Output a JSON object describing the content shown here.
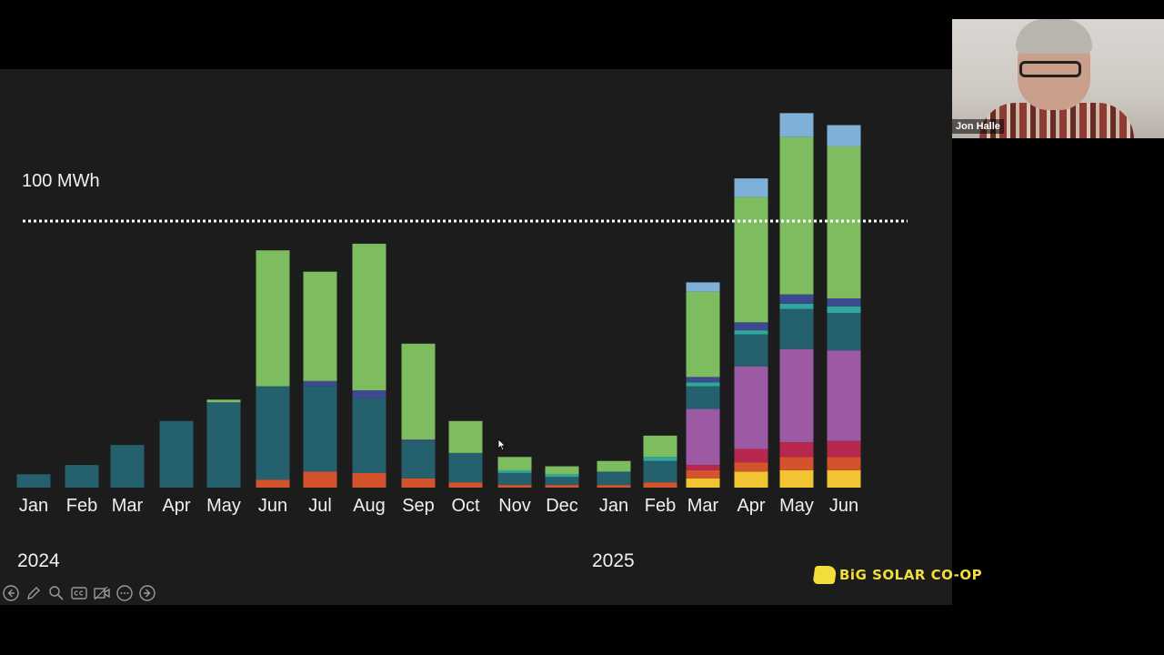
{
  "reference_label": "100 MWh",
  "year_labels": [
    "2024",
    "2025"
  ],
  "logo_text": "BiG SOLAR CO-OP",
  "participant_name": "Jon Halle",
  "toolbar_icons": [
    "prev-icon",
    "pen-icon",
    "zoom-icon",
    "captions-icon",
    "video-icon",
    "more-icon",
    "next-icon"
  ],
  "colors": {
    "background": "#1c1c1c",
    "teal": "#24606e",
    "green": "#7dbd5f",
    "navy": "#3d4a90",
    "light_blue": "#7fb1d8",
    "purple": "#9b5aa3",
    "aqua": "#2fa79a",
    "orange": "#d2532c",
    "yellow": "#f2c434",
    "crimson": "#b8274d",
    "logo_yellow": "#f2dd3a"
  },
  "chart_data": {
    "type": "bar",
    "stacked": true,
    "unit": "MWh",
    "reference_line": 100,
    "ylim": [
      0,
      140
    ],
    "categories": [
      "Jan",
      "Feb",
      "Mar",
      "Apr",
      "May",
      "Jun",
      "Jul",
      "Aug",
      "Sep",
      "Oct",
      "Nov",
      "Dec",
      "Jan",
      "Feb",
      "Mar",
      "Apr",
      "May",
      "Jun"
    ],
    "series": [
      {
        "color": "#f2c434",
        "values": [
          0,
          0,
          0,
          0,
          0,
          0,
          0,
          0,
          0,
          0,
          0,
          0,
          0,
          0,
          3.5,
          6,
          6.5,
          6.5
        ]
      },
      {
        "color": "#d2532c",
        "values": [
          0,
          0,
          0,
          0,
          0,
          3,
          6,
          5.5,
          3.5,
          2,
          1,
          1,
          1,
          2,
          3,
          3.5,
          5,
          5
        ]
      },
      {
        "color": "#b8274d",
        "values": [
          0,
          0,
          0,
          0,
          0,
          0,
          0,
          0,
          0,
          0,
          0,
          0,
          0,
          0,
          2,
          5,
          5.5,
          6
        ]
      },
      {
        "color": "#9b5aa3",
        "values": [
          0,
          0,
          0,
          0,
          0,
          0,
          0,
          0,
          0,
          0,
          0,
          0,
          0,
          0,
          21,
          31,
          35,
          34
        ]
      },
      {
        "color": "#24606e",
        "values": [
          5,
          8.5,
          16,
          25,
          32,
          35,
          32,
          28,
          14,
          11,
          4.5,
          3,
          5,
          8,
          8.5,
          12,
          15,
          14
        ]
      },
      {
        "color": "#2fa79a",
        "values": [
          0,
          0,
          0,
          0,
          0,
          0,
          0,
          0,
          0,
          0,
          1,
          1,
          0,
          1.5,
          1.5,
          1.5,
          2,
          2.5
        ]
      },
      {
        "color": "#3d4a90",
        "values": [
          0,
          0,
          0,
          0,
          0,
          0,
          2,
          3,
          0.5,
          0,
          0,
          0,
          0,
          0,
          2,
          3,
          3.5,
          3
        ]
      },
      {
        "color": "#7dbd5f",
        "values": [
          0,
          0,
          0,
          0,
          1,
          51,
          41,
          55,
          36,
          12,
          5,
          3,
          4,
          8,
          32,
          47,
          59,
          57
        ]
      },
      {
        "color": "#7fb1d8",
        "values": [
          0,
          0,
          0,
          0,
          0,
          0,
          0,
          0,
          0,
          0,
          0,
          0,
          0,
          0,
          3.5,
          7,
          9,
          8
        ]
      }
    ]
  }
}
